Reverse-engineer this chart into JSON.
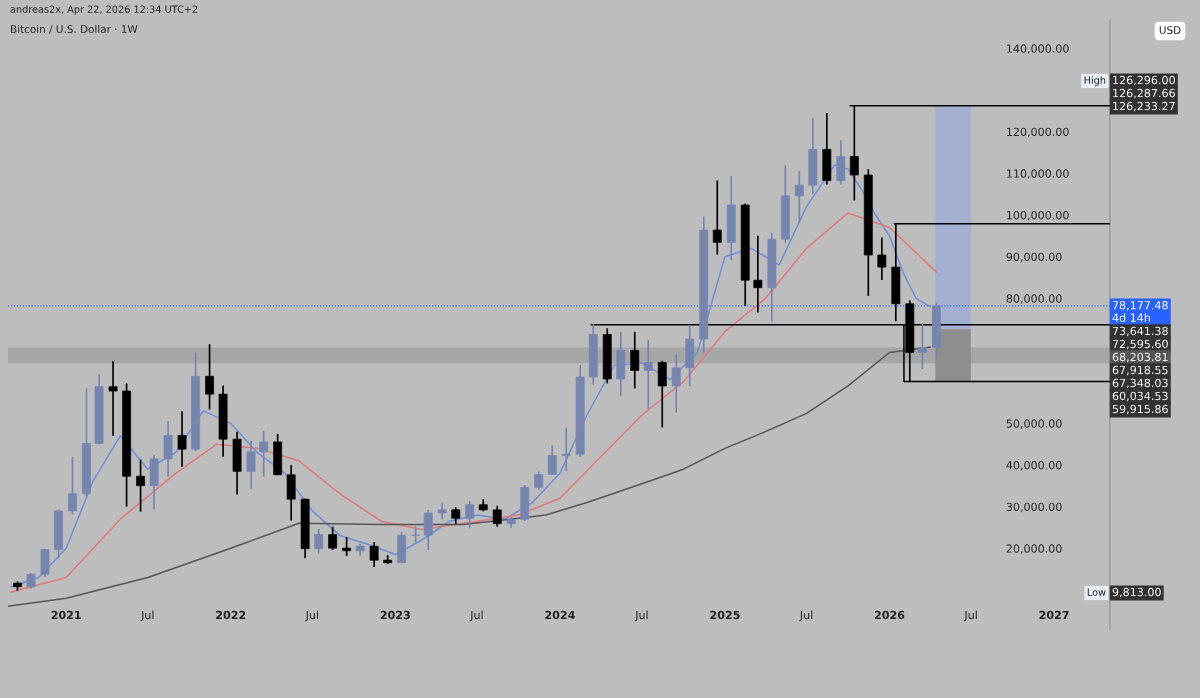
{
  "chart_data": {
    "type": "candlestick",
    "title": "Bitcoin / U.S. Dollar · 1W",
    "subtitle": "andreas2x, Apr 22, 2026 12:34 UTC+2",
    "ylabel": "USD",
    "x": [
      "2020-09-15",
      "2020-10-15",
      "2020-11-15",
      "2020-12-15",
      "2021-01-15",
      "2021-02-15",
      "2021-03-15",
      "2021-04-15",
      "2021-05-15",
      "2021-06-15",
      "2021-07-15",
      "2021-08-15",
      "2021-09-15",
      "2021-10-15",
      "2021-11-15",
      "2021-12-15",
      "2022-01-15",
      "2022-02-15",
      "2022-03-15",
      "2022-04-15",
      "2022-05-15",
      "2022-06-15",
      "2022-07-15",
      "2022-08-15",
      "2022-09-15",
      "2022-10-15",
      "2022-11-15",
      "2022-12-15",
      "2023-01-15",
      "2023-02-15",
      "2023-03-15",
      "2023-04-15",
      "2023-05-15",
      "2023-06-15",
      "2023-07-15",
      "2023-08-15",
      "2023-09-15",
      "2023-10-15",
      "2023-11-15",
      "2023-12-15",
      "2024-01-15",
      "2024-02-15",
      "2024-03-15",
      "2024-04-15",
      "2024-05-15",
      "2024-06-15",
      "2024-07-15",
      "2024-08-15",
      "2024-09-15",
      "2024-10-15",
      "2024-11-15",
      "2024-12-15",
      "2025-01-15",
      "2025-02-15",
      "2025-03-15",
      "2025-04-15",
      "2025-05-15",
      "2025-06-15",
      "2025-07-15",
      "2025-08-15",
      "2025-09-15",
      "2025-10-15",
      "2025-11-15",
      "2025-12-15",
      "2026-01-15",
      "2026-02-15",
      "2026-03-15",
      "2026-04-15"
    ],
    "ohlc": [
      [
        11650,
        12070,
        9813,
        10780
      ],
      [
        10780,
        14100,
        10370,
        13800
      ],
      [
        13800,
        19900,
        13200,
        19700
      ],
      [
        19700,
        29300,
        17600,
        28990
      ],
      [
        28990,
        41950,
        28130,
        33110
      ],
      [
        33110,
        58350,
        32300,
        45160
      ],
      [
        45160,
        61780,
        45000,
        58800
      ],
      [
        58800,
        64900,
        47000,
        57750
      ],
      [
        57750,
        59600,
        30000,
        37300
      ],
      [
        37300,
        41300,
        28800,
        35040
      ],
      [
        35040,
        42400,
        29300,
        41460
      ],
      [
        41460,
        50500,
        37300,
        47100
      ],
      [
        47100,
        52900,
        39600,
        43800
      ],
      [
        43800,
        67000,
        43300,
        61300
      ],
      [
        61300,
        69000,
        53300,
        57000
      ],
      [
        57000,
        59100,
        42000,
        46200
      ],
      [
        46200,
        47990,
        32900,
        38480
      ],
      [
        38480,
        45800,
        34300,
        43160
      ],
      [
        43160,
        48200,
        37200,
        45540
      ],
      [
        45540,
        47450,
        37600,
        37650
      ],
      [
        37650,
        40000,
        26700,
        31800
      ],
      [
        31800,
        31900,
        17600,
        19930
      ],
      [
        19930,
        24650,
        18800,
        23300
      ],
      [
        23300,
        25200,
        19600,
        20050
      ],
      [
        20050,
        22700,
        18150,
        19420
      ],
      [
        19420,
        21100,
        18200,
        20500
      ],
      [
        20500,
        21450,
        15500,
        17160
      ],
      [
        17160,
        18400,
        16300,
        16540
      ],
      [
        16540,
        23950,
        16500,
        23130
      ],
      [
        23130,
        25250,
        21400,
        23150
      ],
      [
        23150,
        29200,
        19600,
        28480
      ],
      [
        28480,
        31000,
        26950,
        29250
      ],
      [
        29250,
        29850,
        25800,
        27200
      ],
      [
        27200,
        31400,
        24800,
        30480
      ],
      [
        30480,
        31800,
        28900,
        29230
      ],
      [
        29230,
        30200,
        25200,
        25940
      ],
      [
        25940,
        27500,
        24900,
        26970
      ],
      [
        26970,
        35200,
        26550,
        34650
      ],
      [
        34650,
        38450,
        34100,
        37720
      ],
      [
        37720,
        44700,
        37600,
        42280
      ],
      [
        42280,
        48970,
        38500,
        42580
      ],
      [
        42580,
        64000,
        41900,
        61130
      ],
      [
        61130,
        73800,
        59300,
        71330
      ],
      [
        71330,
        72800,
        59600,
        60640
      ],
      [
        60640,
        71950,
        56500,
        67500
      ],
      [
        67500,
        71950,
        58400,
        62700
      ],
      [
        62700,
        70000,
        53500,
        64600
      ],
      [
        64600,
        65000,
        49000,
        58970
      ],
      [
        58970,
        66500,
        52600,
        63330
      ],
      [
        63330,
        73600,
        58900,
        70220
      ],
      [
        70220,
        99650,
        66800,
        96400
      ],
      [
        96400,
        108300,
        90500,
        93430
      ],
      [
        93430,
        109350,
        89200,
        102400
      ],
      [
        102400,
        102750,
        78200,
        84350
      ],
      [
        84350,
        95000,
        76600,
        82550
      ],
      [
        82550,
        95750,
        74400,
        94200
      ],
      [
        94200,
        111900,
        93400,
        104600
      ],
      [
        104600,
        110500,
        98200,
        107150
      ],
      [
        107150,
        123200,
        105100,
        115750
      ],
      [
        115750,
        124450,
        107300,
        108250
      ],
      [
        108250,
        117900,
        107300,
        114050
      ],
      [
        114050,
        126296,
        103500,
        109600
      ],
      [
        109600,
        111000,
        80600,
        90400
      ],
      [
        90400,
        94600,
        84400,
        87500
      ],
      [
        87500,
        97900,
        74500,
        78700
      ],
      [
        78700,
        79500,
        60034,
        67000
      ],
      [
        67000,
        74000,
        63000,
        68200
      ],
      [
        68200,
        79000,
        65500,
        78177
      ]
    ],
    "series": [
      {
        "type": "line",
        "color": "#6f8fd8",
        "x": [
          "2020-09-01",
          "2020-11-01",
          "2021-01-01",
          "2021-03-01",
          "2021-05-01",
          "2021-07-01",
          "2021-09-01",
          "2021-11-01",
          "2022-01-01",
          "2022-03-01",
          "2022-05-01",
          "2022-07-01",
          "2022-09-01",
          "2022-11-01",
          "2023-01-01",
          "2023-03-01",
          "2023-05-01",
          "2023-07-01",
          "2023-09-01",
          "2023-11-01",
          "2024-01-01",
          "2024-03-01",
          "2024-05-01",
          "2024-07-01",
          "2024-09-01",
          "2024-11-01",
          "2025-01-01",
          "2025-03-01",
          "2025-05-01",
          "2025-07-01",
          "2025-09-01",
          "2025-10-01",
          "2025-11-01",
          "2025-12-01",
          "2026-01-01",
          "2026-02-01",
          "2026-03-01",
          "2026-04-01"
        ],
        "values": [
          10800,
          13000,
          20000,
          36000,
          47000,
          39000,
          43000,
          53000,
          50000,
          43000,
          38000,
          29000,
          23000,
          21000,
          18500,
          22000,
          26500,
          28000,
          27000,
          31000,
          38000,
          52000,
          64000,
          64500,
          60500,
          67000,
          90000,
          92000,
          88000,
          102000,
          112000,
          111000,
          106000,
          100000,
          95000,
          86000,
          80000,
          78000
        ]
      },
      {
        "type": "line",
        "color": "#e07a7a",
        "x": [
          "2020-09-01",
          "2021-01-01",
          "2021-05-01",
          "2021-09-01",
          "2021-12-01",
          "2022-03-01",
          "2022-06-01",
          "2022-09-01",
          "2022-12-01",
          "2023-03-01",
          "2023-07-01",
          "2023-10-01",
          "2024-01-01",
          "2024-04-01",
          "2024-07-01",
          "2024-10-01",
          "2025-01-01",
          "2025-04-01",
          "2025-07-01",
          "2025-10-01",
          "2026-01-01",
          "2026-04-15"
        ],
        "values": [
          9500,
          13000,
          27000,
          38000,
          45000,
          44000,
          41000,
          33000,
          26500,
          24500,
          26500,
          28000,
          32000,
          42000,
          52000,
          60000,
          72000,
          80000,
          92000,
          100500,
          97000,
          86300
        ]
      },
      {
        "type": "line",
        "color": "#555555",
        "x": [
          "2020-08-25",
          "2021-01-01",
          "2021-07-01",
          "2022-01-01",
          "2022-06-01",
          "2022-12-01",
          "2023-06-01",
          "2023-12-01",
          "2024-03-01",
          "2024-07-01",
          "2024-10-01",
          "2025-01-01",
          "2025-04-01",
          "2025-07-01",
          "2025-10-01",
          "2026-01-01",
          "2026-04-01"
        ],
        "values": [
          6100,
          8000,
          13000,
          20000,
          26000,
          25700,
          25700,
          28000,
          31000,
          35500,
          39000,
          44000,
          48000,
          52400,
          59000,
          67000,
          68300
        ]
      },
      {
        "type": "line",
        "color": "#000000",
        "x": [
          "2025-10-06",
          "2027-05-05"
        ],
        "values": [
          126233.27,
          126233.27
        ]
      },
      {
        "type": "line",
        "color": "#000000",
        "x": [
          "2026-01-12",
          "2027-05-05"
        ],
        "values": [
          97900,
          97900
        ]
      },
      {
        "type": "line",
        "color": "#000000",
        "x": [
          "2024-03-11",
          "2027-05-05"
        ],
        "values": [
          73641.38,
          73641.38
        ]
      },
      {
        "type": "line",
        "color": "#000000",
        "x": [
          "2026-02-02",
          "2026-02-02",
          "2027-05-05"
        ],
        "values": [
          73641.38,
          60034.53,
          60034.53
        ]
      },
      {
        "type": "bar",
        "color": "#a3b0d2",
        "x": [
          "2026-05-22"
        ],
        "base": [
          72595.6
        ],
        "values": [
          53637.67
        ]
      },
      {
        "type": "bar",
        "color": "#8e8e8e",
        "x": [
          "2026-05-22"
        ],
        "base": [
          59915.86
        ],
        "values": [
          12679.74
        ]
      }
    ],
    "ref_lines": [
      {
        "axis": "y",
        "value": 78177.48,
        "label": "78,177.48\n4d 14h",
        "color": "#2962ff",
        "line_style": "dotted"
      }
    ],
    "bands": [
      {
        "axis": "y",
        "from": 64400,
        "to": 68203.81,
        "label": "68,203.81",
        "color": "#a6a6a6"
      }
    ],
    "annotations": [
      "High",
      "126,296.00",
      "126,287.66",
      "126,233.27",
      "73,641.38",
      "72,595.60",
      "67,918.55",
      "67,348.03",
      "60,034.53",
      "59,915.86",
      "Low",
      "9,813.00"
    ],
    "xlim": [
      "2020-08-25",
      "2027-05-05"
    ],
    "xticks": [
      {
        "value": "2021-01-01",
        "label": "2021"
      },
      {
        "value": "2021-07-01",
        "label": "Jul"
      },
      {
        "value": "2022-01-01",
        "label": "2022"
      },
      {
        "value": "2022-07-01",
        "label": "Jul"
      },
      {
        "value": "2023-01-01",
        "label": "2023"
      },
      {
        "value": "2023-07-01",
        "label": "Jul"
      },
      {
        "value": "2024-01-01",
        "label": "2024"
      },
      {
        "value": "2024-07-01",
        "label": "Jul"
      },
      {
        "value": "2025-01-01",
        "label": "2025"
      },
      {
        "value": "2025-07-01",
        "label": "Jul"
      },
      {
        "value": "2026-01-01",
        "label": "2026"
      },
      {
        "value": "2026-07-01",
        "label": "Jul"
      },
      {
        "value": "2027-01-01",
        "label": "2027"
      }
    ],
    "ylim": [
      400,
      146800
    ],
    "yticks": [
      {
        "value": 20000,
        "label": "20,000.00"
      },
      {
        "value": 30000,
        "label": "30,000.00"
      },
      {
        "value": 40000,
        "label": "40,000.00"
      },
      {
        "value": 50000,
        "label": "50,000.00"
      },
      {
        "value": 80000,
        "label": "80,000.00"
      },
      {
        "value": 90000,
        "label": "90,000.00"
      },
      {
        "value": 100000,
        "label": "100,000.00"
      },
      {
        "value": 110000,
        "label": "110,000.00"
      },
      {
        "value": 120000,
        "label": "120,000.00"
      },
      {
        "value": 140000,
        "label": "140,000.00"
      }
    ],
    "grid": false,
    "legend": false
  }
}
